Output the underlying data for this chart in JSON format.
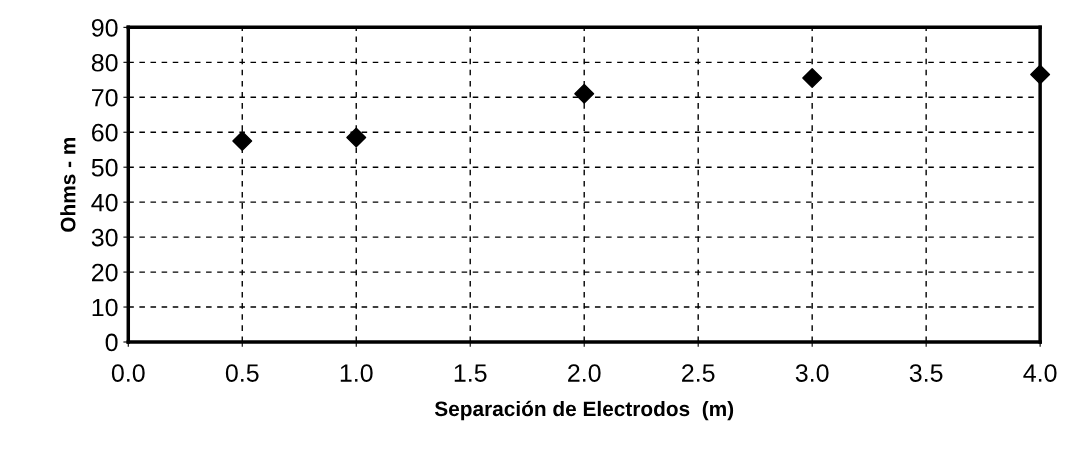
{
  "chart_data": {
    "type": "scatter",
    "xlabel": "Separación de Electrodos  (m)",
    "ylabel": "Ohms - m",
    "x": [
      0.5,
      1.0,
      2.0,
      3.0,
      4.0
    ],
    "values": [
      57.5,
      58.5,
      71,
      75.5,
      76.5
    ],
    "color": "#000000",
    "marker": "diamond",
    "grid": true,
    "line_style": "dashed",
    "xlim": [
      0,
      4
    ],
    "ylim": [
      0,
      90
    ],
    "xticks": [
      {
        "value": 0,
        "label": "0.0"
      },
      {
        "value": 0.5,
        "label": "0.5"
      },
      {
        "value": 1,
        "label": "1.0"
      },
      {
        "value": 1.5,
        "label": "1.5"
      },
      {
        "value": 2,
        "label": "2.0"
      },
      {
        "value": 2.5,
        "label": "2.5"
      },
      {
        "value": 3,
        "label": "3.0"
      },
      {
        "value": 3.5,
        "label": "3.5"
      },
      {
        "value": 4,
        "label": "4.0"
      }
    ],
    "yticks": [
      0,
      10,
      20,
      30,
      40,
      50,
      60,
      70,
      80,
      90
    ]
  }
}
